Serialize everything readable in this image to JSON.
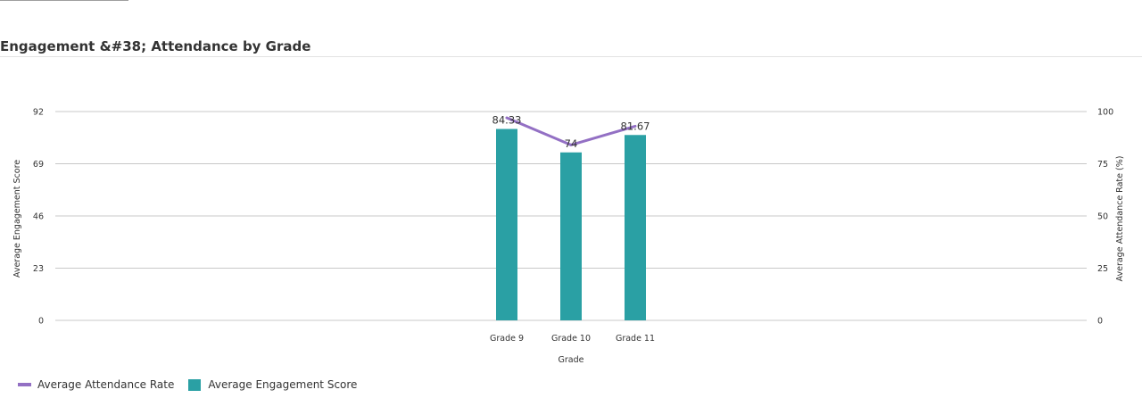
{
  "title": "Engagement &#38; Attendance by Grade",
  "colors": {
    "bar": "#2aa0a4",
    "line": "#9370c4",
    "grid": "#c8c8c8",
    "text": "#333333"
  },
  "chart_data": {
    "type": "bar",
    "title": "Engagement &#38; Attendance by Grade",
    "categories": [
      "Grade 9",
      "Grade 10",
      "Grade 11"
    ],
    "xlabel": "Grade",
    "ylabel": "Average Engagement Score",
    "y2label": "Average Attendance Rate (%)",
    "ylim": [
      0,
      92
    ],
    "yticks": [
      "0",
      "23",
      "46",
      "69",
      "92"
    ],
    "y2lim": [
      0,
      100
    ],
    "y2ticks": [
      "0",
      "25",
      "50",
      "75",
      "100"
    ],
    "grid": true,
    "legend_position": "bottom-left",
    "series": [
      {
        "name": "Average Engagement Score",
        "type": "bar",
        "axis": "left",
        "values": [
          84.33,
          74,
          81.67
        ],
        "labels": [
          "84.33",
          "74",
          "81.67"
        ]
      },
      {
        "name": "Average Attendance Rate",
        "type": "line",
        "axis": "right",
        "values": [
          97,
          84,
          93
        ]
      }
    ]
  }
}
